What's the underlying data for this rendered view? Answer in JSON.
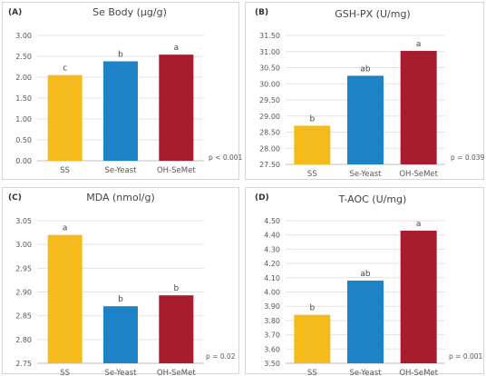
{
  "chart_data": [
    {
      "type": "bar",
      "panel_label": "(A)",
      "title": "Se Body (µg/g)",
      "categories": [
        "SS",
        "Se-Yeast",
        "OH-SeMet"
      ],
      "values": [
        2.05,
        2.38,
        2.54
      ],
      "data_labels": [
        "c",
        "b",
        "a"
      ],
      "colors": [
        "#F5BA1C",
        "#1E82C6",
        "#A71D2E"
      ],
      "yticks": [
        "0.00",
        "0.50",
        "1.00",
        "1.50",
        "2.00",
        "2.50",
        "3.00"
      ],
      "ylim": [
        0,
        3.0
      ],
      "grid": true,
      "p_value": "p < 0.001"
    },
    {
      "type": "bar",
      "panel_label": "(B)",
      "title": "GSH-PX (U/mg)",
      "categories": [
        "SS",
        "Se-Yeast",
        "OH-SeMet"
      ],
      "values": [
        28.7,
        30.25,
        31.02
      ],
      "data_labels": [
        "b",
        "ab",
        "a"
      ],
      "colors": [
        "#F5BA1C",
        "#1E82C6",
        "#A71D2E"
      ],
      "yticks": [
        "27.50",
        "28.00",
        "28.50",
        "29.00",
        "29.50",
        "30.00",
        "30.50",
        "31.00",
        "31.50"
      ],
      "ylim": [
        27.5,
        31.5
      ],
      "grid": true,
      "p_value": "p = 0.039"
    },
    {
      "type": "bar",
      "panel_label": "(C)",
      "title": "MDA (nmol/g)",
      "categories": [
        "SS",
        "Se-Yeast",
        "OH-SeMet"
      ],
      "values": [
        3.02,
        2.87,
        2.893
      ],
      "data_labels": [
        "a",
        "b",
        "b"
      ],
      "colors": [
        "#F5BA1C",
        "#1E82C6",
        "#A71D2E"
      ],
      "yticks": [
        "2.75",
        "2.80",
        "2.85",
        "2.90",
        "2.95",
        "3.00",
        "3.05"
      ],
      "ylim": [
        2.75,
        3.05
      ],
      "grid": true,
      "p_value": "p = 0.02"
    },
    {
      "type": "bar",
      "panel_label": "(D)",
      "title": "T-AOC (U/mg)",
      "categories": [
        "SS",
        "Se-Yeast",
        "OH-SeMet"
      ],
      "values": [
        3.84,
        4.08,
        4.43
      ],
      "data_labels": [
        "b",
        "ab",
        "a"
      ],
      "colors": [
        "#F5BA1C",
        "#1E82C6",
        "#A71D2E"
      ],
      "yticks": [
        "3.50",
        "3.60",
        "3.70",
        "3.80",
        "3.90",
        "4.00",
        "4.10",
        "4.20",
        "4.30",
        "4.40",
        "4.50"
      ],
      "ylim": [
        3.5,
        4.5
      ],
      "grid": true,
      "p_value": "p = 0.001"
    }
  ]
}
